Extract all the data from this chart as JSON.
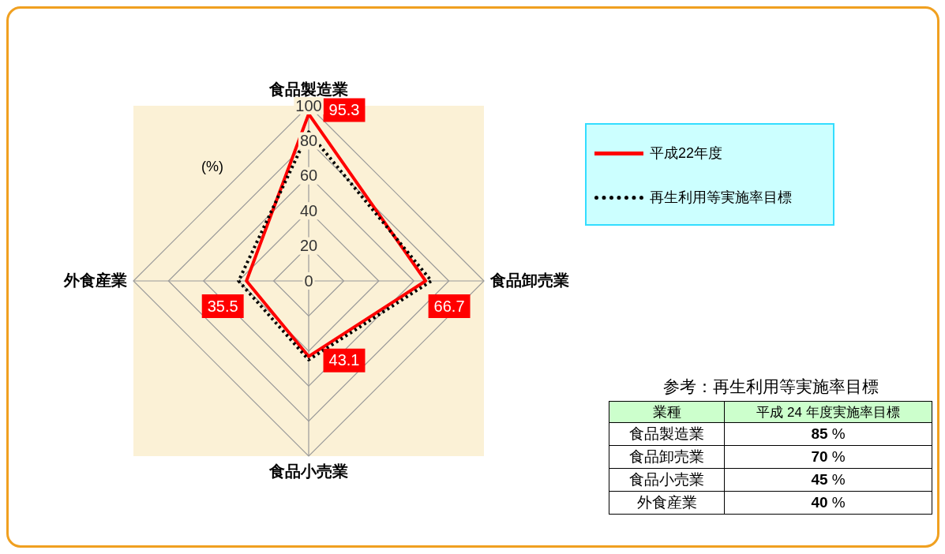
{
  "chart_data": {
    "type": "radar",
    "categories": [
      "食品製造業",
      "食品卸売業",
      "食品小売業",
      "外食産業"
    ],
    "series": [
      {
        "name": "平成22年度",
        "color": "#ff0000",
        "values": [
          95.3,
          66.7,
          43.1,
          35.5
        ],
        "line_style": "solid",
        "data_labels": true
      },
      {
        "name": "再生利用等実施率目標",
        "color": "#000000",
        "values": [
          85,
          70,
          45,
          40
        ],
        "line_style": "dotted"
      }
    ],
    "ylim": [
      0,
      100
    ],
    "yticks": [
      0,
      20,
      40,
      60,
      80,
      100
    ],
    "grid": true,
    "legend": "top right",
    "marker": "none",
    "ylabel": "(%)",
    "annotations": [
      "参考：再生利用等実施率目標",
      "業種",
      "平成 24 年度実施率目標",
      "85 %",
      "70 %",
      "45 %",
      "40 %"
    ]
  }
}
